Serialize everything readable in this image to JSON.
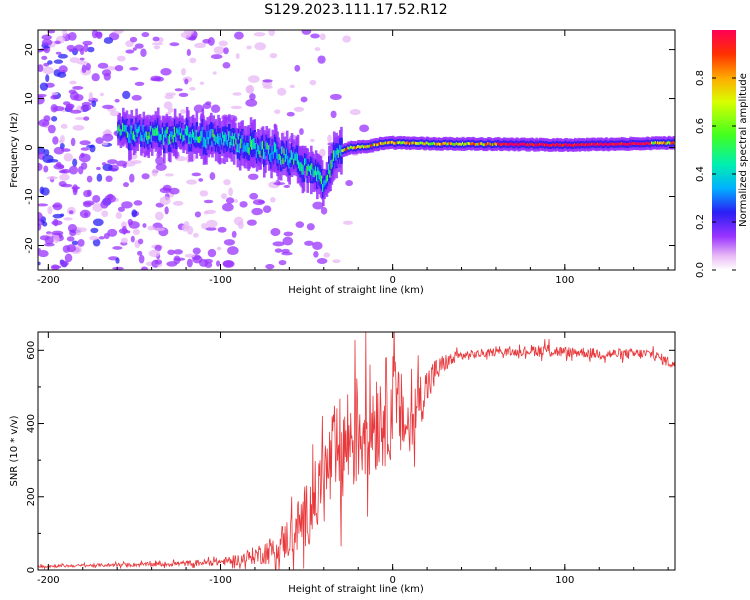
{
  "title": "S129.2023.111.17.52.R12",
  "colors": {
    "snr_line": "#e8383b",
    "axis": "#000000"
  },
  "chart_data": [
    {
      "type": "heatmap",
      "title": "",
      "xlabel": "Height of straight line (km)",
      "ylabel": "Frequency (Hz)",
      "xlim": [
        -206,
        164
      ],
      "ylim": [
        -25,
        24
      ],
      "xticks": [
        -200,
        -100,
        0,
        100
      ],
      "yticks": [
        -20,
        -10,
        0,
        10,
        20
      ],
      "ridge": {
        "description_points": [
          {
            "x": -158,
            "y": 3
          },
          {
            "x": -130,
            "y": 2.5
          },
          {
            "x": -110,
            "y": 2
          },
          {
            "x": -90,
            "y": 1
          },
          {
            "x": -70,
            "y": -1
          },
          {
            "x": -55,
            "y": -3
          },
          {
            "x": -45,
            "y": -5
          },
          {
            "x": -40,
            "y": -8
          },
          {
            "x": -38,
            "y": -5
          },
          {
            "x": -32,
            "y": -1
          },
          {
            "x": -25,
            "y": 0
          },
          {
            "x": -15,
            "y": 0.2
          },
          {
            "x": -5,
            "y": 1
          },
          {
            "x": 0,
            "y": 1
          },
          {
            "x": 20,
            "y": 0.8
          },
          {
            "x": 60,
            "y": 0.7
          },
          {
            "x": 100,
            "y": 0.5
          },
          {
            "x": 140,
            "y": 0.8
          },
          {
            "x": 164,
            "y": 1
          }
        ],
        "peak_amplitude_range": [
          60,
          150
        ]
      },
      "colorbar": {
        "label": "Normalized spectral amplitude",
        "ticks": [
          "0.0",
          "0.2",
          "0.4",
          "0.6",
          "0.8"
        ],
        "range": [
          0,
          1
        ]
      }
    },
    {
      "type": "line",
      "title": "",
      "xlabel": "Height of straight line (km)",
      "ylabel": "SNR (10 * v/v)",
      "xlim": [
        -206,
        164
      ],
      "ylim": [
        0,
        650
      ],
      "xticks": [
        -200,
        -100,
        0,
        100
      ],
      "yticks": [
        0,
        200,
        400,
        600
      ],
      "series": [
        {
          "name": "SNR",
          "x": [
            -206,
            -180,
            -160,
            -140,
            -120,
            -100,
            -90,
            -80,
            -70,
            -60,
            -50,
            -40,
            -35,
            -30,
            -25,
            -20,
            -15,
            -10,
            -5,
            0,
            5,
            10,
            15,
            20,
            25,
            30,
            40,
            50,
            60,
            70,
            80,
            90,
            100,
            110,
            120,
            130,
            140,
            150,
            164
          ],
          "values": [
            10,
            12,
            14,
            15,
            18,
            22,
            28,
            40,
            55,
            90,
            150,
            240,
            300,
            320,
            360,
            380,
            400,
            420,
            430,
            450,
            420,
            380,
            460,
            500,
            540,
            565,
            585,
            590,
            595,
            595,
            600,
            600,
            595,
            595,
            590,
            590,
            590,
            590,
            560
          ],
          "noise_amplitude": [
            4,
            4,
            5,
            6,
            8,
            10,
            15,
            25,
            40,
            60,
            90,
            120,
            140,
            160,
            160,
            160,
            160,
            160,
            150,
            150,
            120,
            100,
            80,
            60,
            40,
            25,
            15,
            12,
            10,
            10,
            15,
            20,
            15,
            15,
            15,
            15,
            15,
            15,
            15
          ]
        }
      ]
    }
  ]
}
